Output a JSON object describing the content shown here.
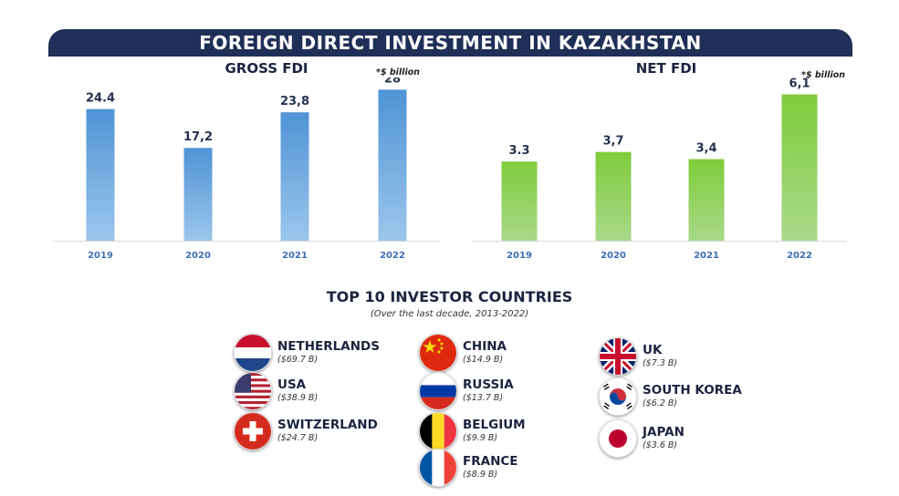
{
  "banner_title": "FOREIGN DIRECT INVESTMENT IN KAZAKHSTAN",
  "chart_data": [
    {
      "type": "bar",
      "title": "GROSS FDI",
      "unit_note": "*$ billion",
      "categories": [
        "2019",
        "2020",
        "2021",
        "2022"
      ],
      "values": [
        24.4,
        17.2,
        23.8,
        28
      ],
      "value_labels": [
        "24.4",
        "17,2",
        "23,8",
        "28"
      ],
      "color": "#5b9bd5",
      "ylim": [
        0,
        30
      ]
    },
    {
      "type": "bar",
      "title": "NET FDI",
      "unit_note": "*$ billion",
      "categories": [
        "2019",
        "2020",
        "2021",
        "2022"
      ],
      "values": [
        3.3,
        3.7,
        3.4,
        6.1
      ],
      "value_labels": [
        "3.3",
        "3,7",
        "3,4",
        "6,1"
      ],
      "color": "#8ccf4d",
      "ylim": [
        0,
        6.5
      ]
    }
  ],
  "investors": {
    "title": "TOP 10 INVESTOR COUNTRIES",
    "subtitle": "(Over the last decade, 2013-2022)",
    "countries": [
      {
        "name": "NETHERLANDS",
        "value": "($69.7 B)",
        "flag_icon": "netherlands-flag-icon"
      },
      {
        "name": "USA",
        "value": "($38.9 B)",
        "flag_icon": "usa-flag-icon"
      },
      {
        "name": "SWITZERLAND",
        "value": "($24.7 B)",
        "flag_icon": "switzerland-flag-icon"
      },
      {
        "name": "CHINA",
        "value": "($14.9 B)",
        "flag_icon": "china-flag-icon"
      },
      {
        "name": "RUSSIA",
        "value": "($13.7 B)",
        "flag_icon": "russia-flag-icon"
      },
      {
        "name": "BELGIUM",
        "value": "($9.9 B)",
        "flag_icon": "belgium-flag-icon"
      },
      {
        "name": "FRANCE",
        "value": "($8.9 B)",
        "flag_icon": "france-flag-icon"
      },
      {
        "name": "UK",
        "value": "($7.3 B)",
        "flag_icon": "uk-flag-icon"
      },
      {
        "name": "SOUTH KOREA",
        "value": "($6.2 B)",
        "flag_icon": "south-korea-flag-icon"
      },
      {
        "name": "JAPAN",
        "value": "($3.6 B)",
        "flag_icon": "japan-flag-icon"
      }
    ]
  }
}
